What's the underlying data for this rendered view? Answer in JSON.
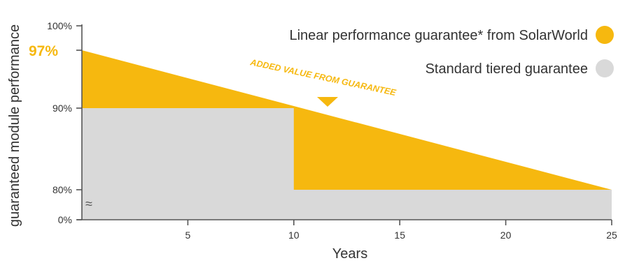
{
  "chart_data": {
    "type": "area",
    "ylabel": "guaranteed module performance",
    "xlabel": "Years",
    "x_ticks": [
      "5",
      "10",
      "15",
      "20",
      "25"
    ],
    "y_ticks": [
      "100%",
      "90%",
      "80%",
      "0%"
    ],
    "y_highlight_tick": "97%",
    "axis_break": "≈",
    "xlim": [
      0,
      25
    ],
    "series": [
      {
        "name": "Linear performance guarantee* from SolarWorld",
        "color": "#f6b80f",
        "points": [
          [
            0,
            97
          ],
          [
            25,
            80
          ]
        ]
      },
      {
        "name": "Standard tiered guarantee",
        "color": "#d9d9d9",
        "points": [
          [
            0,
            90
          ],
          [
            10,
            90
          ],
          [
            10,
            80
          ],
          [
            25,
            80
          ]
        ]
      }
    ],
    "annotation": {
      "text": "ADDED VALUE FROM GUARANTEE",
      "color": "#f6b80f"
    },
    "legend_position": "top-right"
  }
}
